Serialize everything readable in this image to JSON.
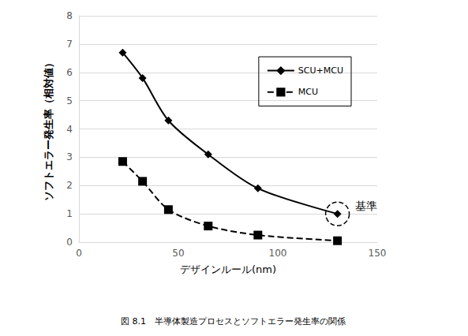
{
  "chart_data": {
    "type": "line",
    "title": "図 8.1　半導体製造プロセスとソフトエラー発生率の関係",
    "x_label": "デザインルール(nm)",
    "y_label": "ソフトエラー発生率（相対値）",
    "series": [
      {
        "name": "SCU+MCU",
        "color": "#000000",
        "marker": "diamond",
        "line_style": "solid",
        "x": [
          22,
          32,
          45,
          65,
          90,
          130
        ],
        "values": [
          6.7,
          5.8,
          4.3,
          3.1,
          1.9,
          1.0
        ]
      },
      {
        "name": "MCU",
        "color": "#000000",
        "marker": "square",
        "line_style": "dashed",
        "x": [
          22,
          32,
          45,
          65,
          90,
          130
        ],
        "values": [
          2.85,
          2.15,
          1.15,
          0.57,
          0.25,
          0.05
        ]
      }
    ],
    "xlim": [
      0,
      150
    ],
    "xticks": [
      0,
      50,
      100,
      150
    ],
    "ylim": [
      0,
      8
    ],
    "yticks": [
      0,
      1,
      2,
      3,
      4,
      5,
      6,
      7,
      8
    ],
    "grid": true,
    "legend": "upper right",
    "annotations": [
      {
        "text": "基準",
        "x": 130,
        "y": 1.0
      }
    ]
  }
}
